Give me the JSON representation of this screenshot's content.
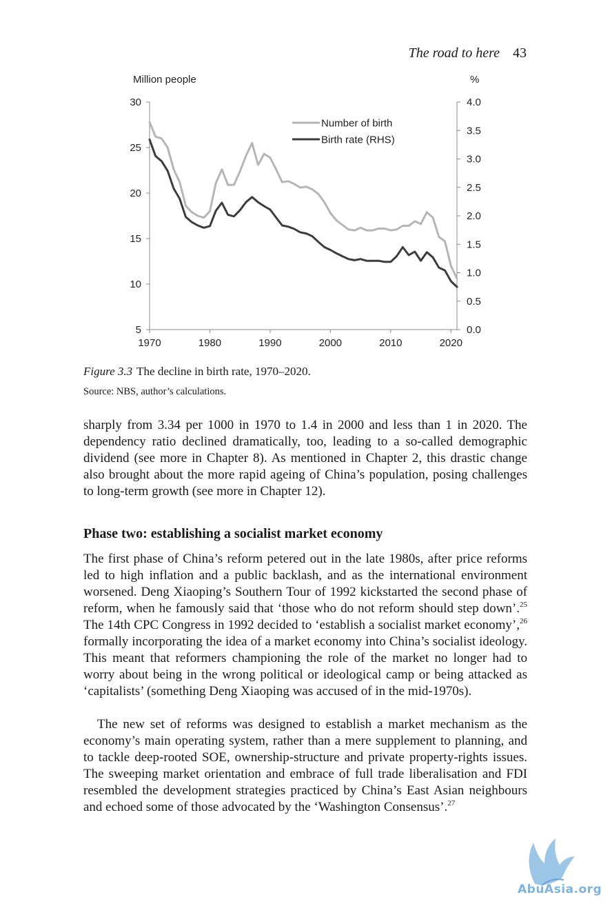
{
  "running_head": {
    "title": "The road to here",
    "page_number": "43"
  },
  "figure": {
    "label": "Figure 3.3",
    "caption": "The decline in birth rate, 1970–2020.",
    "source": "Source: NBS, author’s calculations."
  },
  "chart_data": {
    "type": "line",
    "title": "",
    "left_axis_label": "Million people",
    "right_axis_label": "%",
    "left_ylim": [
      5,
      30
    ],
    "right_ylim": [
      0,
      4
    ],
    "xlim": [
      1970,
      2021
    ],
    "left_ticks": [
      5,
      10,
      15,
      20,
      25,
      30
    ],
    "right_ticks": [
      "0.0",
      "0.5",
      "1.0",
      "1.5",
      "2.0",
      "2.5",
      "3.0",
      "3.5",
      "4.0"
    ],
    "x_ticks": [
      1970,
      1980,
      1990,
      2000,
      2010,
      2020
    ],
    "grid": false,
    "legend_placement": "top-center",
    "series": [
      {
        "name": "Number of birth",
        "axis": "left",
        "color": "#b5b5b5",
        "x": [
          1970,
          1971,
          1972,
          1973,
          1974,
          1975,
          1976,
          1977,
          1978,
          1979,
          1980,
          1981,
          1982,
          1983,
          1984,
          1985,
          1986,
          1987,
          1988,
          1989,
          1990,
          1991,
          1992,
          1993,
          1994,
          1995,
          1996,
          1997,
          1998,
          1999,
          2000,
          2001,
          2002,
          2003,
          2004,
          2005,
          2006,
          2007,
          2008,
          2009,
          2010,
          2011,
          2012,
          2013,
          2014,
          2015,
          2016,
          2017,
          2018,
          2019,
          2020,
          2021
        ],
        "values": [
          27.8,
          26.2,
          26.0,
          25.0,
          22.6,
          21.2,
          18.6,
          17.9,
          17.5,
          17.3,
          18.0,
          21.1,
          22.6,
          20.9,
          20.9,
          22.4,
          24.1,
          25.5,
          23.1,
          24.3,
          23.9,
          22.6,
          21.2,
          21.3,
          21.0,
          20.6,
          20.7,
          20.4,
          19.9,
          19.0,
          17.8,
          17.0,
          16.5,
          16.0,
          15.9,
          16.2,
          15.9,
          15.9,
          16.1,
          16.1,
          15.9,
          16.0,
          16.4,
          16.4,
          16.9,
          16.6,
          17.9,
          17.3,
          15.2,
          14.7,
          12.0,
          10.6
        ]
      },
      {
        "name": "Birth rate (RHS)",
        "axis": "right",
        "color": "#3c3c3c",
        "x": [
          1970,
          1971,
          1972,
          1973,
          1974,
          1975,
          1976,
          1977,
          1978,
          1979,
          1980,
          1981,
          1982,
          1983,
          1984,
          1985,
          1986,
          1987,
          1988,
          1989,
          1990,
          1991,
          1992,
          1993,
          1994,
          1995,
          1996,
          1997,
          1998,
          1999,
          2000,
          2001,
          2002,
          2003,
          2004,
          2005,
          2006,
          2007,
          2008,
          2009,
          2010,
          2011,
          2012,
          2013,
          2014,
          2015,
          2016,
          2017,
          2018,
          2019,
          2020,
          2021
        ],
        "values": [
          3.34,
          3.05,
          2.96,
          2.79,
          2.48,
          2.3,
          1.98,
          1.89,
          1.83,
          1.79,
          1.82,
          2.09,
          2.23,
          2.02,
          1.99,
          2.1,
          2.24,
          2.33,
          2.24,
          2.17,
          2.11,
          1.97,
          1.83,
          1.81,
          1.77,
          1.71,
          1.69,
          1.64,
          1.54,
          1.45,
          1.4,
          1.34,
          1.29,
          1.24,
          1.22,
          1.24,
          1.21,
          1.21,
          1.21,
          1.19,
          1.19,
          1.29,
          1.45,
          1.31,
          1.37,
          1.21,
          1.36,
          1.27,
          1.09,
          1.04,
          0.85,
          0.75
        ]
      }
    ]
  },
  "paragraphs": {
    "p1": "sharply from 3.34 per 1000 in 1970 to 1.4 in 2000 and less than 1 in 2020. The dependency ratio declined dramatically, too, leading to a so-called demographic dividend (see more in Chapter 8). As mentioned in Chapter 2, this drastic change also brought about the more rapid ageing of China’s population, posing challenges to long-term growth (see more in Chapter 12).",
    "heading": "Phase two: establishing a socialist market economy",
    "p2_a": "The first phase of China’s reform petered out in the late 1980s, after price reforms led to high inflation and a public backlash, and as the international environment worsened. Deng Xiaoping’s Southern Tour of 1992 kickstarted the second phase of reform, when he famously said that ‘those who do not reform should step down’.",
    "note_25": "25",
    "p2_b": " The 14th CPC Congress in 1992 decided to ‘establish a socialist market economy’,",
    "note_26": "26",
    "p2_c": " formally incorporating the idea of a market economy into China’s socialist ideology. This meant that reform­ers championing the role of the market no longer had to worry about being in the wrong political or ideological camp or being attacked as ‘capitalists’ (something Deng Xiaoping was accused of in the mid-1970s).",
    "p3_a": "The new set of reforms was designed to establish a market mechanism as the economy’s main operating system, rather than a mere supplement to planning, and to tackle deep-rooted SOE, ownership-structure and private property-rights issues. The sweeping market orientation and embrace of full trade liberalisation and FDI resembled the development strategies practiced by China’s East Asian neighbours and echoed some of those advocated by the ‘Washington Consensus’.",
    "note_27": "27"
  },
  "watermark": {
    "text": "AbuAsia.org",
    "color": "#7fb2dd"
  }
}
